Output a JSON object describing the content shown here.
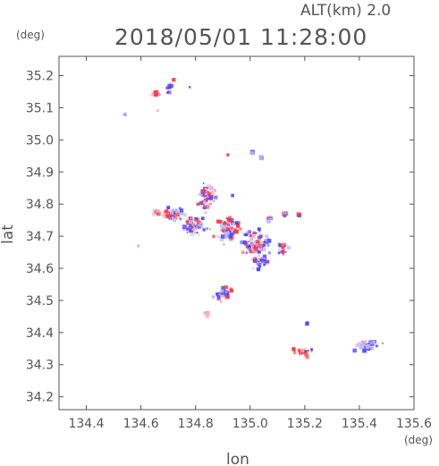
{
  "header": {
    "altitude_label": "ALT(km)  2.0",
    "datetime": "2018/05/01  11:28:00"
  },
  "colors": {
    "axis": "#555555",
    "positive": "#ff3b3b",
    "negative": "#4a4aff",
    "pale_positive": "#ffb8b8",
    "pale_negative": "#b8b8ff"
  },
  "chart_data": {
    "type": "scatter",
    "title": "2018/05/01  11:28:00",
    "xlabel": "lon",
    "ylabel": "lat",
    "x_unit": "(deg)",
    "y_unit": "(deg)",
    "xlim": [
      134.3,
      135.6
    ],
    "ylim": [
      34.16,
      35.26
    ],
    "x_ticks": [
      134.4,
      134.6,
      134.8,
      135.0,
      135.2,
      135.4,
      135.6
    ],
    "x_tick_labels": [
      "134.4",
      "134.6",
      "134.8",
      "135.0",
      "135.2",
      "135.4",
      "135.6"
    ],
    "y_ticks": [
      34.2,
      34.3,
      34.4,
      34.5,
      34.6,
      34.7,
      34.8,
      34.9,
      35.0,
      35.1,
      35.2
    ],
    "y_tick_labels": [
      "34.2",
      "34.3",
      "34.4",
      "34.5",
      "34.6",
      "34.7",
      "34.8",
      "34.9",
      "35.0",
      "35.1",
      "35.2"
    ],
    "grid": false,
    "clusters": [
      {
        "lon": 134.655,
        "lat": 35.143,
        "sx": 0.012,
        "sy": 0.006,
        "n": 18,
        "bias": 0.85
      },
      {
        "lon": 134.705,
        "lat": 35.16,
        "sx": 0.01,
        "sy": 0.015,
        "n": 14,
        "bias": 0.2
      },
      {
        "lon": 134.72,
        "lat": 35.19,
        "sx": 0.004,
        "sy": 0.004,
        "n": 3,
        "bias": 0.3
      },
      {
        "lon": 134.78,
        "lat": 35.165,
        "sx": 0.003,
        "sy": 0.003,
        "n": 2,
        "bias": 0.1
      },
      {
        "lon": 134.54,
        "lat": 35.078,
        "sx": 0.003,
        "sy": 0.002,
        "n": 2,
        "bias": 0.3
      },
      {
        "lon": 134.66,
        "lat": 35.09,
        "sx": 0.003,
        "sy": 0.003,
        "n": 2,
        "bias": 0.4
      },
      {
        "lon": 135.01,
        "lat": 34.96,
        "sx": 0.004,
        "sy": 0.003,
        "n": 4,
        "bias": 0.15
      },
      {
        "lon": 135.04,
        "lat": 34.945,
        "sx": 0.008,
        "sy": 0.004,
        "n": 8,
        "bias": 0.3
      },
      {
        "lon": 134.92,
        "lat": 34.955,
        "sx": 0.004,
        "sy": 0.003,
        "n": 2,
        "bias": 0.6
      },
      {
        "lon": 134.84,
        "lat": 34.82,
        "sx": 0.03,
        "sy": 0.035,
        "n": 60,
        "bias": 0.5
      },
      {
        "lon": 134.72,
        "lat": 34.77,
        "sx": 0.03,
        "sy": 0.02,
        "n": 50,
        "bias": 0.45
      },
      {
        "lon": 134.66,
        "lat": 34.775,
        "sx": 0.01,
        "sy": 0.01,
        "n": 12,
        "bias": 0.75
      },
      {
        "lon": 134.8,
        "lat": 34.73,
        "sx": 0.04,
        "sy": 0.03,
        "n": 70,
        "bias": 0.4
      },
      {
        "lon": 134.92,
        "lat": 34.72,
        "sx": 0.04,
        "sy": 0.035,
        "n": 90,
        "bias": 0.5
      },
      {
        "lon": 135.02,
        "lat": 34.68,
        "sx": 0.05,
        "sy": 0.035,
        "n": 90,
        "bias": 0.45
      },
      {
        "lon": 135.04,
        "lat": 34.62,
        "sx": 0.035,
        "sy": 0.018,
        "n": 40,
        "bias": 0.4
      },
      {
        "lon": 135.12,
        "lat": 34.66,
        "sx": 0.02,
        "sy": 0.018,
        "n": 20,
        "bias": 0.35
      },
      {
        "lon": 135.07,
        "lat": 34.755,
        "sx": 0.008,
        "sy": 0.008,
        "n": 8,
        "bias": 0.5
      },
      {
        "lon": 135.13,
        "lat": 34.765,
        "sx": 0.008,
        "sy": 0.008,
        "n": 8,
        "bias": 0.5
      },
      {
        "lon": 135.18,
        "lat": 34.765,
        "sx": 0.006,
        "sy": 0.006,
        "n": 6,
        "bias": 0.5
      },
      {
        "lon": 134.935,
        "lat": 34.825,
        "sx": 0.003,
        "sy": 0.003,
        "n": 2,
        "bias": 0.2
      },
      {
        "lon": 134.59,
        "lat": 34.67,
        "sx": 0.003,
        "sy": 0.003,
        "n": 2,
        "bias": 0.3
      },
      {
        "lon": 134.9,
        "lat": 34.52,
        "sx": 0.03,
        "sy": 0.02,
        "n": 40,
        "bias": 0.4
      },
      {
        "lon": 134.84,
        "lat": 34.46,
        "sx": 0.008,
        "sy": 0.006,
        "n": 6,
        "bias": 0.7
      },
      {
        "lon": 135.21,
        "lat": 34.43,
        "sx": 0.004,
        "sy": 0.003,
        "n": 3,
        "bias": 0.1
      },
      {
        "lon": 135.19,
        "lat": 34.34,
        "sx": 0.035,
        "sy": 0.015,
        "n": 25,
        "bias": 0.85
      },
      {
        "lon": 135.43,
        "lat": 34.36,
        "sx": 0.04,
        "sy": 0.015,
        "n": 35,
        "bias": 0.3
      }
    ]
  }
}
